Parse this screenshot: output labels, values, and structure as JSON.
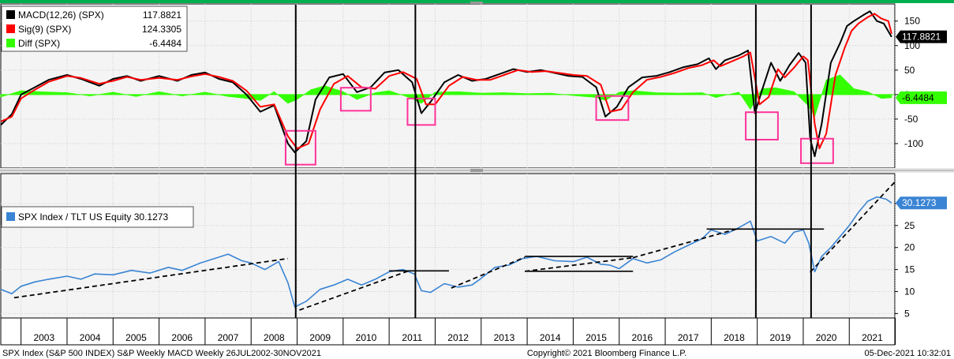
{
  "chart_data": [
    {
      "type": "line",
      "panel": "MACD",
      "ylim": [
        -150,
        185
      ],
      "yticks": [
        "150",
        "100",
        "50",
        "0",
        "-50",
        "-100"
      ],
      "grid": true,
      "legend_placement": "top-left",
      "legend": [
        {
          "name": "MACD(12,26) (SPX)",
          "value": "117.8821",
          "color": "#000000"
        },
        {
          "name": "Sig(9) (SPX)",
          "value": "124.3305",
          "color": "#ff0000"
        },
        {
          "name": "Diff (SPX)",
          "value": "-6.4484",
          "color": "#33ff00"
        }
      ],
      "last_value_tags": [
        {
          "value": 117.8821,
          "text": "117.8821",
          "bg": "#000000",
          "fg": "#ffffff"
        },
        {
          "value": -6.4484,
          "text": "-6.4484",
          "bg": "#33ff00",
          "fg": "#000000"
        }
      ],
      "series": [
        {
          "name": "MACD(12,26) (SPX)",
          "color": "#000000",
          "x": [
            2002.56,
            2002.8,
            2003.0,
            2003.3,
            2003.6,
            2004.0,
            2004.3,
            2004.7,
            2005.0,
            2005.3,
            2005.6,
            2006.0,
            2006.4,
            2006.7,
            2007.0,
            2007.3,
            2007.6,
            2007.9,
            2008.2,
            2008.5,
            2008.8,
            2008.95,
            2009.2,
            2009.4,
            2009.7,
            2010.0,
            2010.3,
            2010.6,
            2010.9,
            2011.2,
            2011.5,
            2011.7,
            2011.9,
            2012.2,
            2012.5,
            2012.8,
            2013.1,
            2013.4,
            2013.7,
            2014.0,
            2014.3,
            2014.6,
            2014.9,
            2015.2,
            2015.5,
            2015.7,
            2015.95,
            2016.2,
            2016.5,
            2016.8,
            2017.1,
            2017.4,
            2017.7,
            2017.95,
            2018.1,
            2018.3,
            2018.6,
            2018.8,
            2018.95,
            2019.1,
            2019.3,
            2019.5,
            2019.7,
            2019.9,
            2020.05,
            2020.15,
            2020.25,
            2020.4,
            2020.6,
            2020.8,
            2020.95,
            2021.1,
            2021.3,
            2021.45,
            2021.6,
            2021.75,
            2021.92
          ],
          "y": [
            -62,
            -40,
            0,
            15,
            30,
            40,
            32,
            18,
            32,
            38,
            28,
            38,
            28,
            40,
            45,
            32,
            25,
            0,
            -35,
            -22,
            -100,
            -118,
            -95,
            -10,
            35,
            42,
            5,
            15,
            45,
            50,
            25,
            -38,
            -15,
            25,
            40,
            28,
            32,
            42,
            52,
            46,
            50,
            44,
            38,
            36,
            15,
            -45,
            -25,
            15,
            35,
            38,
            46,
            56,
            62,
            74,
            52,
            70,
            80,
            90,
            -38,
            8,
            65,
            28,
            60,
            85,
            65,
            -90,
            -126,
            -60,
            65,
            105,
            140,
            150,
            162,
            170,
            150,
            145,
            117.88
          ]
        },
        {
          "name": "Sig(9) (SPX)",
          "color": "#ff0000",
          "x": [
            2002.56,
            2002.8,
            2003.0,
            2003.3,
            2003.6,
            2004.0,
            2004.3,
            2004.7,
            2005.0,
            2005.3,
            2005.6,
            2006.0,
            2006.4,
            2006.7,
            2007.0,
            2007.3,
            2007.6,
            2007.9,
            2008.2,
            2008.5,
            2008.8,
            2009.0,
            2009.25,
            2009.5,
            2009.8,
            2010.1,
            2010.4,
            2010.7,
            2011.0,
            2011.3,
            2011.6,
            2011.8,
            2012.0,
            2012.3,
            2012.6,
            2012.9,
            2013.2,
            2013.5,
            2013.8,
            2014.1,
            2014.4,
            2014.7,
            2015.0,
            2015.3,
            2015.6,
            2015.8,
            2016.05,
            2016.3,
            2016.6,
            2016.9,
            2017.2,
            2017.5,
            2017.8,
            2018.05,
            2018.2,
            2018.4,
            2018.7,
            2018.85,
            2019.05,
            2019.25,
            2019.45,
            2019.6,
            2019.8,
            2020.0,
            2020.1,
            2020.25,
            2020.35,
            2020.5,
            2020.7,
            2020.9,
            2021.05,
            2021.2,
            2021.4,
            2021.55,
            2021.7,
            2021.85,
            2021.92
          ],
          "y": [
            -55,
            -45,
            -8,
            10,
            26,
            38,
            34,
            22,
            28,
            36,
            30,
            34,
            30,
            37,
            42,
            36,
            28,
            8,
            -25,
            -20,
            -85,
            -110,
            -100,
            -30,
            22,
            38,
            15,
            12,
            38,
            46,
            32,
            -20,
            -20,
            18,
            36,
            30,
            30,
            40,
            50,
            46,
            48,
            44,
            40,
            38,
            20,
            -35,
            -30,
            5,
            30,
            36,
            44,
            54,
            60,
            70,
            58,
            66,
            78,
            86,
            -20,
            -5,
            52,
            35,
            55,
            78,
            70,
            -60,
            -110,
            -80,
            40,
            95,
            130,
            145,
            158,
            165,
            155,
            150,
            124.33
          ]
        },
        {
          "name": "Diff (SPX)",
          "color": "#33ff00",
          "x": [
            2002.56,
            2003.0,
            2003.4,
            2004.0,
            2004.5,
            2005.0,
            2005.5,
            2006.0,
            2006.5,
            2007.0,
            2007.5,
            2007.9,
            2008.2,
            2008.5,
            2008.8,
            2009.0,
            2009.3,
            2009.6,
            2010.0,
            2010.3,
            2010.7,
            2011.0,
            2011.5,
            2011.7,
            2012.0,
            2012.5,
            2013.0,
            2013.5,
            2014.0,
            2014.5,
            2015.0,
            2015.5,
            2015.7,
            2016.0,
            2016.3,
            2016.8,
            2017.3,
            2017.8,
            2018.1,
            2018.6,
            2018.85,
            2019.1,
            2019.4,
            2019.8,
            2020.1,
            2020.25,
            2020.5,
            2020.8,
            2021.1,
            2021.4,
            2021.7,
            2021.92
          ],
          "y": [
            -5,
            8,
            6,
            4,
            -3,
            5,
            -4,
            6,
            -3,
            5,
            -4,
            -8,
            -12,
            6,
            -18,
            -10,
            10,
            18,
            6,
            -10,
            4,
            8,
            -8,
            -18,
            5,
            6,
            3,
            4,
            2,
            3,
            -2,
            -6,
            -12,
            5,
            8,
            4,
            3,
            4,
            -6,
            5,
            -30,
            12,
            14,
            6,
            -22,
            -45,
            30,
            40,
            12,
            6,
            -8,
            -6.45
          ]
        }
      ]
    },
    {
      "type": "line",
      "panel": "Ratio",
      "ylim": [
        4,
        36.8
      ],
      "yticks": [
        "30",
        "25",
        "20",
        "15",
        "10",
        "5"
      ],
      "grid": true,
      "legend_placement": "top-left",
      "legend": [
        {
          "name": "SPX Index / TLT US Equity",
          "value": "30.1273",
          "color": "#3a84d4"
        }
      ],
      "last_value_tags": [
        {
          "value": 30.1273,
          "text": "30.1273",
          "bg": "#3a84d4",
          "fg": "#ffffff"
        }
      ],
      "series": [
        {
          "name": "SPX Index / TLT US Equity",
          "color": "#3a84d4",
          "x": [
            2002.56,
            2002.8,
            2003.0,
            2003.3,
            2003.6,
            2004.0,
            2004.3,
            2004.6,
            2005.0,
            2005.4,
            2005.8,
            2006.2,
            2006.5,
            2006.9,
            2007.2,
            2007.5,
            2007.8,
            2008.0,
            2008.3,
            2008.6,
            2008.8,
            2008.95,
            2009.2,
            2009.5,
            2009.8,
            2010.1,
            2010.4,
            2010.7,
            2011.0,
            2011.3,
            2011.55,
            2011.7,
            2011.9,
            2012.2,
            2012.5,
            2012.8,
            2013.0,
            2013.3,
            2013.6,
            2013.9,
            2014.2,
            2014.6,
            2015.0,
            2015.3,
            2015.6,
            2015.8,
            2016.0,
            2016.3,
            2016.6,
            2016.9,
            2017.2,
            2017.5,
            2017.8,
            2018.0,
            2018.3,
            2018.6,
            2018.85,
            2019.0,
            2019.3,
            2019.6,
            2019.8,
            2020.0,
            2020.12,
            2020.25,
            2020.4,
            2020.6,
            2020.8,
            2021.0,
            2021.2,
            2021.4,
            2021.6,
            2021.8,
            2021.92
          ],
          "y": [
            10.5,
            9.5,
            11.2,
            12.2,
            12.8,
            13.5,
            12.8,
            14.0,
            13.8,
            14.8,
            14.2,
            15.5,
            14.8,
            16.5,
            17.5,
            18.5,
            17.0,
            16.5,
            15.0,
            16.8,
            12.0,
            6.5,
            7.8,
            10.5,
            11.5,
            12.8,
            11.5,
            12.8,
            14.5,
            15.0,
            14.0,
            10.2,
            9.8,
            11.8,
            11.0,
            11.5,
            13.0,
            15.5,
            16.0,
            17.5,
            18.0,
            17.0,
            16.8,
            17.8,
            16.2,
            16.0,
            15.2,
            17.5,
            16.5,
            17.2,
            19.0,
            20.5,
            22.0,
            24.0,
            23.0,
            24.5,
            26.0,
            21.5,
            22.5,
            21.0,
            23.5,
            24.0,
            21.0,
            14.5,
            18.0,
            20.0,
            22.5,
            25.0,
            28.0,
            30.5,
            31.5,
            31.0,
            30.13
          ]
        }
      ],
      "annotations_dashed": [
        {
          "x": [
            2002.85,
            2008.8
          ],
          "y": [
            8.6,
            17.5
          ]
        },
        {
          "x": [
            2009.05,
            2011.45
          ],
          "y": [
            5.8,
            14.8
          ]
        },
        {
          "x": [
            2012.35,
            2013.95
          ],
          "y": [
            10.8,
            17.8
          ]
        },
        {
          "x": [
            2013.95,
            2016.3
          ],
          "y": [
            14.6,
            17.7
          ]
        },
        {
          "x": [
            2016.3,
            2018.55
          ],
          "y": [
            17.7,
            24.2
          ]
        },
        {
          "x": [
            2020.15,
            2022.0
          ],
          "y": [
            14.4,
            35.0
          ]
        }
      ],
      "annotations_solid": [
        {
          "x": [
            2011.0,
            2012.3
          ],
          "y": [
            14.7,
            14.7
          ]
        },
        {
          "x": [
            2013.95,
            2016.3
          ],
          "y": [
            18.0,
            18.0
          ]
        },
        {
          "x": [
            2013.95,
            2016.3
          ],
          "y": [
            14.6,
            14.6
          ]
        },
        {
          "x": [
            2017.9,
            2020.45
          ],
          "y": [
            24.2,
            24.2
          ]
        }
      ]
    }
  ],
  "macd_boxes": [
    {
      "x0": 2008.75,
      "x1": 2009.4,
      "y0": -143,
      "y1": -74
    },
    {
      "x0": 2009.95,
      "x1": 2010.6,
      "y0": -33,
      "y1": 14
    },
    {
      "x0": 2011.4,
      "x1": 2012.0,
      "y0": -62,
      "y1": -8
    },
    {
      "x0": 2015.5,
      "x1": 2016.2,
      "y0": -52,
      "y1": -3
    },
    {
      "x0": 2018.75,
      "x1": 2019.45,
      "y0": -92,
      "y1": -36
    },
    {
      "x0": 2019.95,
      "x1": 2020.65,
      "y0": -140,
      "y1": -90
    }
  ],
  "vertical_markers": [
    2008.97,
    2011.57,
    2018.97,
    2020.17
  ],
  "x_axis": {
    "year_start": 2002.56,
    "year_end": 2021.99,
    "labels": [
      "2003",
      "2004",
      "2005",
      "2006",
      "2007",
      "2008",
      "2009",
      "2010",
      "2011",
      "2012",
      "2013",
      "2014",
      "2015",
      "2016",
      "2017",
      "2018",
      "2019",
      "2020",
      "2021"
    ]
  },
  "footer": {
    "left": "SPX Index (S&P 500 INDEX) S&P Weekly MACD  Weekly 26JUL2002-30NOV2021",
    "center": "Copyright© 2021 Bloomberg Finance L.P.",
    "right": "05-Dec-2021 10:32:01"
  },
  "colors": {
    "pink_box": "#ff3399",
    "panel_bg": "#f4f4f4",
    "grid": "#cccccc"
  }
}
